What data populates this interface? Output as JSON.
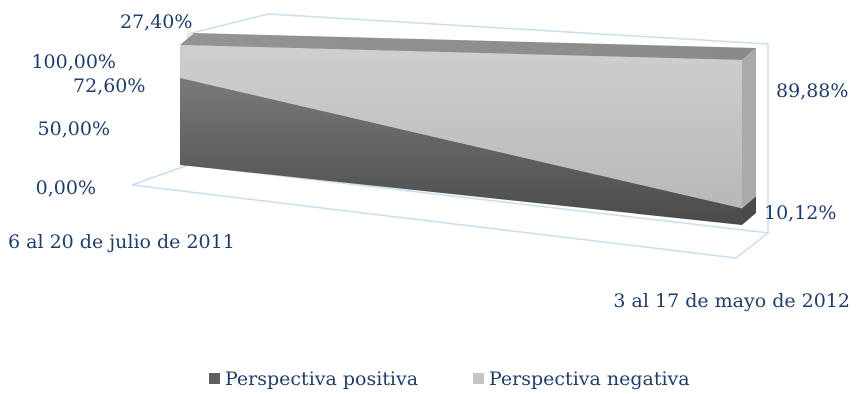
{
  "chart_data": {
    "type": "area",
    "title": "",
    "xlabel": "",
    "ylabel": "",
    "stacked": "percent",
    "three_d": true,
    "categories": [
      "6 al 20 de julio de 2011",
      "3 al 17 de mayo de 2012"
    ],
    "y_ticks": [
      "0,00%",
      "50,00%",
      "100,00%"
    ],
    "ylim": [
      0,
      100
    ],
    "series": [
      {
        "name": "Perspectiva positiva",
        "values": [
          72.6,
          10.12
        ],
        "labels": [
          "72,60%",
          "10,12%"
        ],
        "color": "#5f5f5f"
      },
      {
        "name": "Perspectiva negativa",
        "values": [
          27.4,
          89.88
        ],
        "labels": [
          "27,40%",
          "89,88%"
        ],
        "color": "#c4c4c4"
      }
    ],
    "top_face_color": "#8f8f8f",
    "axis_color": "#c9ddef",
    "text_color": "#1f3d6b",
    "legend_position": "bottom"
  }
}
